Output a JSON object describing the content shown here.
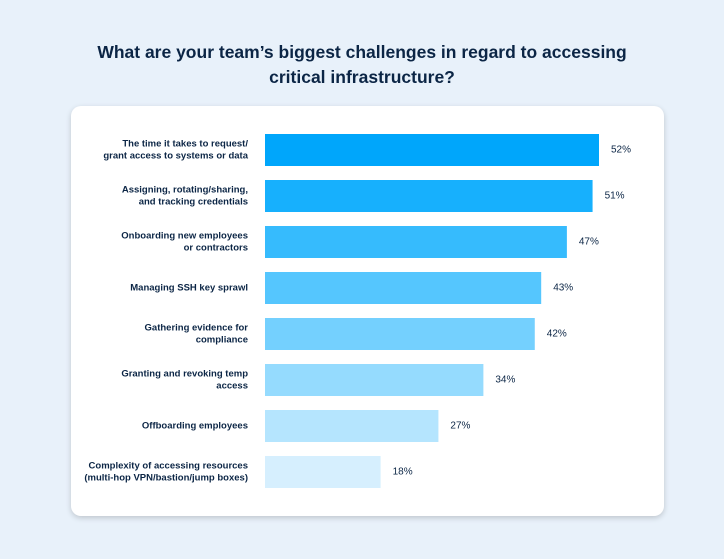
{
  "chart_data": {
    "type": "barh",
    "title": "What are your team’s biggest challenges in regard to accessing critical infrastructure?",
    "categories": [
      [
        "The time it takes to request/",
        "grant access to systems or data"
      ],
      [
        "Assigning, rotating/sharing,",
        "and tracking credentials"
      ],
      [
        "Onboarding new employees",
        "or contractors"
      ],
      [
        "Managing SSH key sprawl"
      ],
      [
        "Gathering evidence for",
        "compliance"
      ],
      [
        "Granting and revoking temp",
        "access"
      ],
      [
        "Offboarding employees"
      ],
      [
        "Complexity of accessing resources",
        "(multi-hop VPN/bastion/jump boxes)"
      ]
    ],
    "values": [
      52,
      51,
      47,
      43,
      42,
      34,
      27,
      18
    ],
    "value_labels": [
      "52%",
      "51%",
      "47%",
      "43%",
      "42%",
      "34%",
      "27%",
      "18%"
    ],
    "colors": [
      "#00a6fb",
      "#17b0fd",
      "#36bbfd",
      "#55c6fe",
      "#74d0fe",
      "#95dbfe",
      "#b5e5fe",
      "#d6effe"
    ]
  }
}
